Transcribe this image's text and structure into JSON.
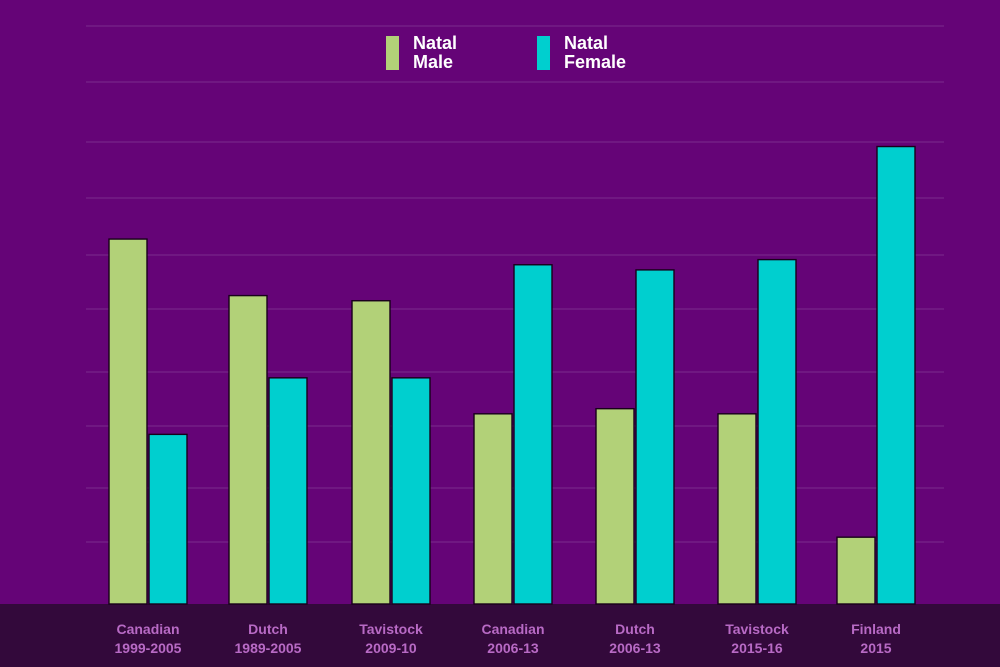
{
  "chart_data": {
    "type": "bar",
    "title": "",
    "xlabel": "",
    "ylabel": "",
    "ylim": [
      0,
      100
    ],
    "categories": [
      {
        "line1": "Canadian",
        "line2": "1999-2005"
      },
      {
        "line1": "Dutch",
        "line2": "1989-2005"
      },
      {
        "line1": "Tavistock",
        "line2": "2009-10"
      },
      {
        "line1": "Canadian",
        "line2": "2006-13"
      },
      {
        "line1": "Dutch",
        "line2": "2006-13"
      },
      {
        "line1": "Tavistock",
        "line2": "2015-16"
      },
      {
        "line1": "Finland",
        "line2": "2015"
      }
    ],
    "series": [
      {
        "name": "Natal Male",
        "name_line1": "Natal",
        "name_line2": "Male",
        "color": "#b2d178",
        "values": [
          71,
          60,
          59,
          37,
          38,
          37,
          13
        ]
      },
      {
        "name": "Natal Female",
        "name_line1": "Natal",
        "name_line2": "Female",
        "color": "#00cfcf",
        "values": [
          33,
          44,
          44,
          66,
          65,
          67,
          89
        ]
      }
    ],
    "legend_position": "top-center"
  },
  "colors": {
    "background": "#650477",
    "footer_band": "#33093b",
    "gridline": "#7a2b8d",
    "category_text": "#b86ac5",
    "legend_text": "#ffffff",
    "bar_outline": "#18001b"
  }
}
